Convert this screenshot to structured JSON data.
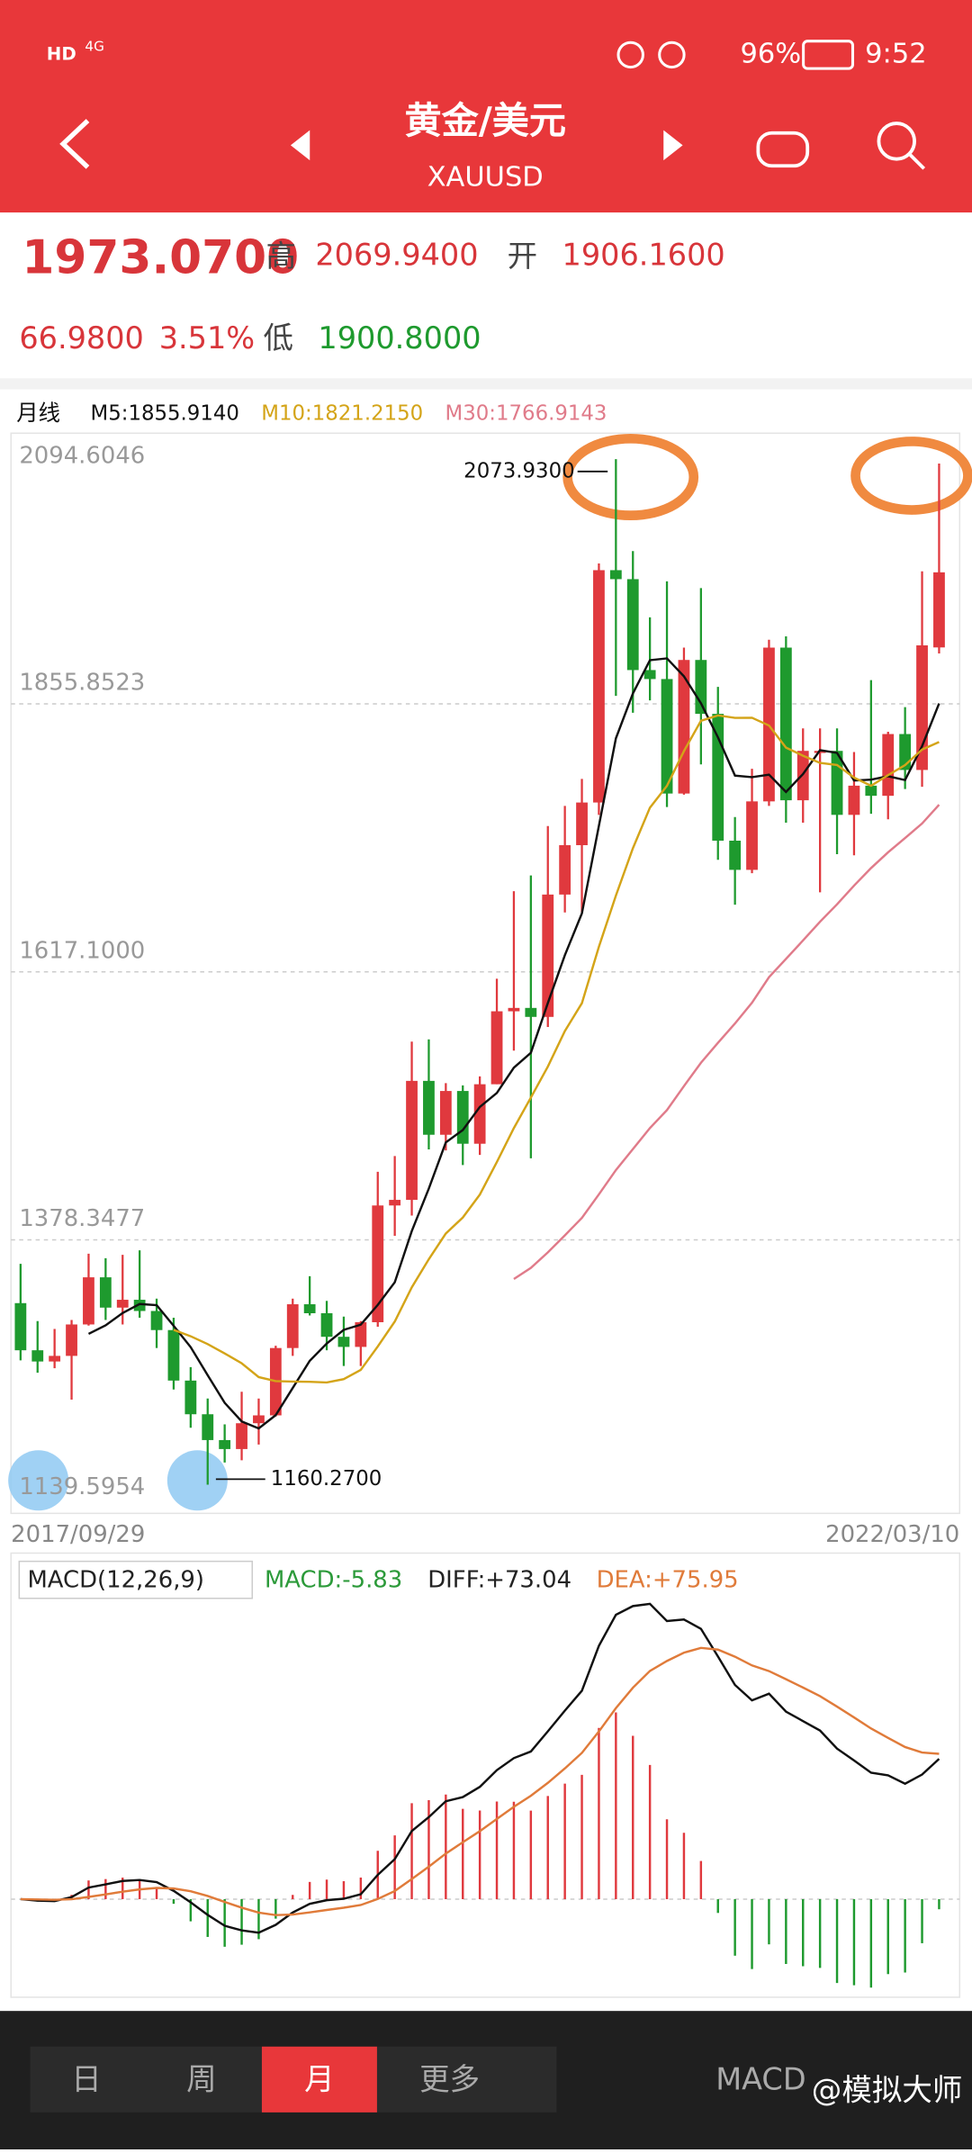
{
  "status_bar": {
    "hd": "HD",
    "network": "4G",
    "battery": "96%",
    "time": "9:52"
  },
  "header": {
    "title": "黄金/美元",
    "subtitle": "XAUUSD"
  },
  "quote": {
    "price": "1973.0700",
    "high_label": "高",
    "high": "2069.9400",
    "open_label": "开",
    "open": "1906.1600",
    "change": "66.9800",
    "change_pct": "3.51%",
    "low_label": "低",
    "low": "1900.8000"
  },
  "chart_data": {
    "type": "candlestick",
    "period_label": "月线",
    "ma_legend": [
      {
        "label": "M5:1855.9140",
        "color": "#111111"
      },
      {
        "label": "M10:1821.2150",
        "color": "#d4a418"
      },
      {
        "label": "M30:1766.9143",
        "color": "#e07b8a"
      }
    ],
    "categories": [
      "2017/09/29",
      null,
      null,
      null,
      null,
      null,
      null,
      null,
      null,
      null,
      null,
      null,
      null,
      null,
      null,
      null,
      null,
      null,
      null,
      null,
      null,
      null,
      null,
      null,
      null,
      null,
      null,
      null,
      null,
      null,
      null,
      null,
      null,
      null,
      null,
      null,
      null,
      null,
      null,
      null,
      null,
      null,
      null,
      null,
      null,
      null,
      null,
      null,
      null,
      null,
      null,
      null,
      null,
      null,
      "2022/03/10"
    ],
    "open": [
      1322,
      1280,
      1270,
      1275,
      1303,
      1345,
      1318,
      1325,
      1315,
      1298,
      1253,
      1223,
      1200,
      1192,
      1215,
      1222,
      1282,
      1321,
      1313,
      1292,
      1283,
      1305,
      1409,
      1414,
      1520,
      1472,
      1511,
      1464,
      1517,
      1582,
      1585,
      1577,
      1686,
      1730,
      1768,
      1975,
      1967,
      1886,
      1878,
      1776,
      1895,
      1847,
      1734,
      1708,
      1769,
      1906,
      1770,
      1814,
      1814,
      1757,
      1783,
      1774,
      1829,
      1797,
      1906.16
    ],
    "high": [
      1357,
      1306,
      1299,
      1307,
      1366,
      1362,
      1365,
      1369,
      1326,
      1309,
      1265,
      1237,
      1214,
      1243,
      1237,
      1284,
      1326,
      1346,
      1324,
      1310,
      1306,
      1439,
      1453,
      1555,
      1557,
      1518,
      1516,
      1524,
      1611,
      1689,
      1703,
      1747,
      1765,
      1789,
      1981,
      2073.93,
      1992,
      1933,
      1965,
      1906,
      1959,
      1871,
      1755,
      1798,
      1913,
      1916,
      1834,
      1834,
      1834,
      1813,
      1877,
      1831,
      1853,
      1974,
      2069.94
    ],
    "low": [
      1271,
      1260,
      1264,
      1236,
      1302,
      1307,
      1303,
      1309,
      1282,
      1245,
      1211,
      1160.27,
      1180,
      1182,
      1196,
      1221,
      1275,
      1311,
      1280,
      1266,
      1266,
      1301,
      1382,
      1400,
      1459,
      1458,
      1445,
      1454,
      1517,
      1547,
      1451,
      1568,
      1670,
      1670,
      1757,
      1863,
      1848,
      1859,
      1764,
      1775,
      1802,
      1717,
      1677,
      1705,
      1765,
      1750,
      1750,
      1688,
      1722,
      1721,
      1758,
      1753,
      1780,
      1782,
      1900.8
    ],
    "close": [
      1280,
      1270,
      1275,
      1303,
      1345,
      1318,
      1325,
      1315,
      1298,
      1253,
      1223,
      1200,
      1192,
      1215,
      1222,
      1282,
      1321,
      1313,
      1292,
      1283,
      1305,
      1409,
      1414,
      1520,
      1472,
      1511,
      1464,
      1517,
      1582,
      1585,
      1577,
      1686,
      1730,
      1768,
      1975,
      1967,
      1886,
      1878,
      1776,
      1895,
      1847,
      1734,
      1708,
      1769,
      1906,
      1770,
      1814,
      1814,
      1757,
      1783,
      1774,
      1829,
      1797,
      1908,
      1973.07
    ],
    "up_color": "#e0393e",
    "down_color": "#1e9a2e",
    "ylim": [
      1139.5954,
      2094.6046
    ],
    "yticks": [
      2094.6046,
      1855.8523,
      {
        "value": 1617.1,
        "label": "1617.1000"
      },
      1378.3477,
      1139.5954
    ],
    "grid": true,
    "annotations": [
      {
        "index": 35,
        "value": 2073.93,
        "label": "2073.9300"
      },
      {
        "index": 11,
        "value": 1160.27,
        "label": "1160.2700"
      }
    ]
  },
  "macd": {
    "label": "MACD(12,26,9)",
    "macd": "MACD:-5.83",
    "diff": "DIFF:+73.04",
    "dea": "DEA:+75.95"
  },
  "tabs": [
    "日",
    "周",
    "月",
    "更多"
  ],
  "indicator_button": "MACD",
  "watermark": "@模拟大师"
}
